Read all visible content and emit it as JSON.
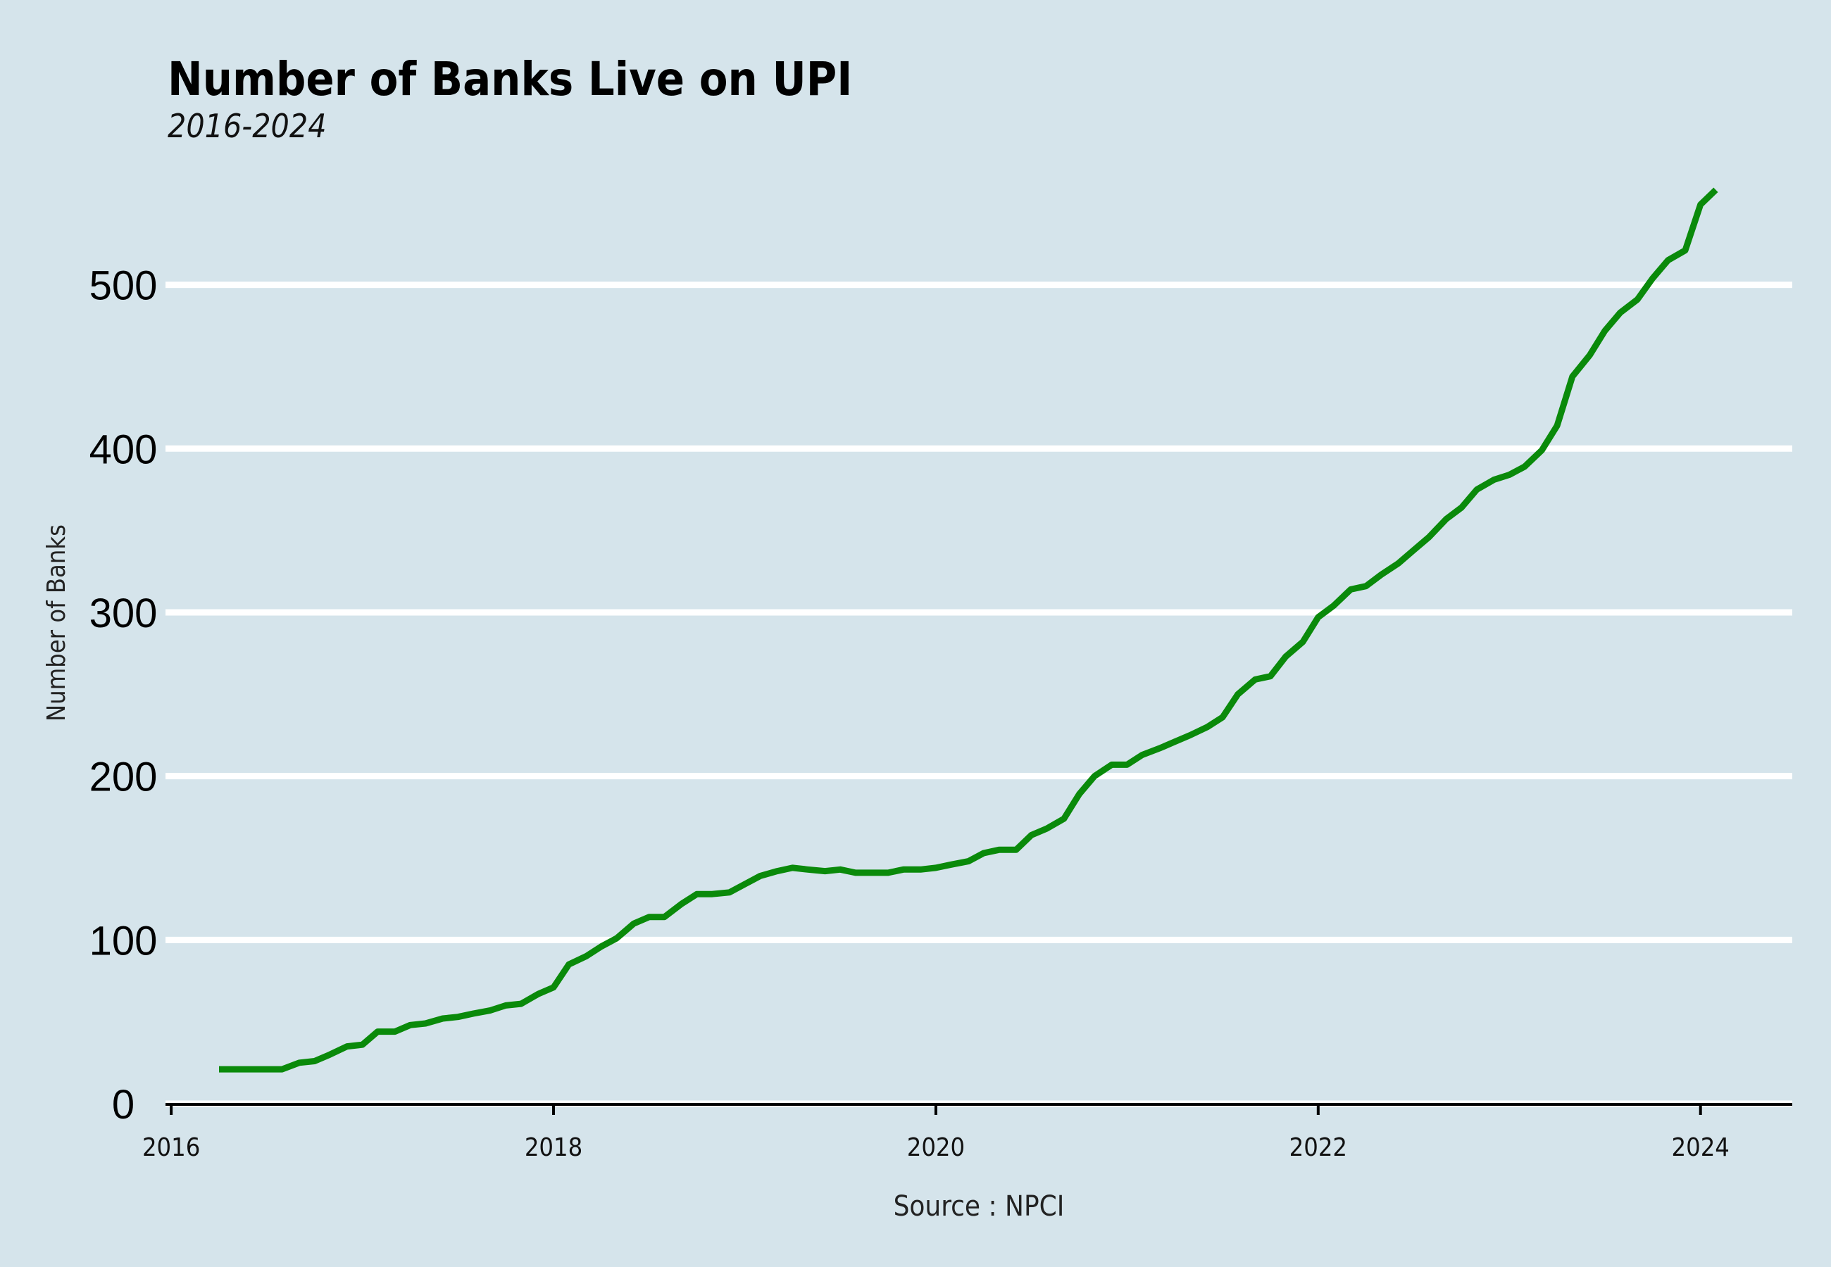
{
  "colors": {
    "background": "#d5e4eb",
    "line": "#0a8a0a",
    "grid": "#ffffff",
    "axis": "#000000"
  },
  "chart_data": {
    "type": "line",
    "title": "Number of Banks Live on UPI",
    "subtitle": "2016-2024",
    "xlabel": "",
    "ylabel": "Number of Banks",
    "caption": "Source : NPCI",
    "xlim": [
      2015.97,
      2024.48
    ],
    "ylim": [
      0,
      560
    ],
    "y_ticks": [
      "0",
      "100",
      "200",
      "300",
      "400",
      "500"
    ],
    "x_ticks": [
      "2016",
      "2018",
      "2020",
      "2022",
      "2024"
    ],
    "grid": "horizontal",
    "legend": "none",
    "series": [
      {
        "x": [
          2016.25,
          2016.33,
          2016.42,
          2016.5,
          2016.58,
          2016.67,
          2016.75,
          2016.83,
          2016.92,
          2017.0,
          2017.08,
          2017.17,
          2017.25,
          2017.33,
          2017.42,
          2017.5,
          2017.58,
          2017.67,
          2017.75,
          2017.83,
          2017.92,
          2018.0,
          2018.08,
          2018.17,
          2018.25,
          2018.33,
          2018.42,
          2018.5,
          2018.58,
          2018.67,
          2018.75,
          2018.83,
          2018.92,
          2019.0,
          2019.08,
          2019.17,
          2019.25,
          2019.33,
          2019.42,
          2019.5,
          2019.58,
          2019.67,
          2019.75,
          2019.83,
          2019.92,
          2020.0,
          2020.08,
          2020.17,
          2020.25,
          2020.33,
          2020.42,
          2020.5,
          2020.58,
          2020.67,
          2020.75,
          2020.83,
          2020.92,
          2021.0,
          2021.08,
          2021.17,
          2021.25,
          2021.33,
          2021.42,
          2021.5,
          2021.58,
          2021.67,
          2021.75,
          2021.83,
          2021.92,
          2022.0,
          2022.08,
          2022.17,
          2022.25,
          2022.33,
          2022.42,
          2022.5,
          2022.58,
          2022.67,
          2022.75,
          2022.83,
          2022.92,
          2023.0,
          2023.08,
          2023.17,
          2023.25,
          2023.33,
          2023.42,
          2023.5,
          2023.58,
          2023.67,
          2023.75,
          2023.83,
          2023.92,
          2024.0,
          2024.08
        ],
        "y": [
          21,
          21,
          21,
          21,
          21,
          25,
          26,
          30,
          35,
          36,
          44,
          44,
          48,
          49,
          52,
          53,
          55,
          57,
          60,
          61,
          67,
          71,
          85,
          90,
          96,
          101,
          110,
          114,
          114,
          122,
          128,
          128,
          129,
          134,
          139,
          142,
          144,
          143,
          142,
          143,
          141,
          141,
          141,
          143,
          143,
          144,
          146,
          148,
          153,
          155,
          155,
          164,
          168,
          174,
          189,
          200,
          207,
          207,
          213,
          217,
          221,
          225,
          230,
          236,
          250,
          259,
          261,
          273,
          282,
          297,
          304,
          314,
          316,
          323,
          330,
          338,
          346,
          357,
          364,
          375,
          381,
          384,
          389,
          399,
          414,
          444,
          457,
          472,
          483,
          491,
          504,
          515,
          521,
          549,
          558
        ]
      }
    ]
  }
}
